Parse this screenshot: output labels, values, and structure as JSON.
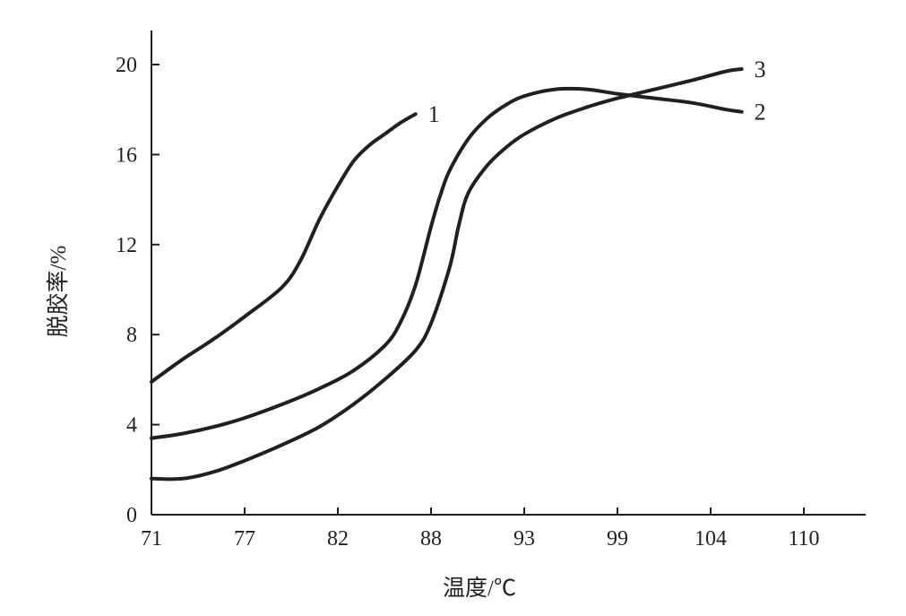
{
  "chart_data": {
    "type": "line",
    "xlabel": "温度/℃",
    "ylabel": "脱胶率/%",
    "x_ticks": [
      "71",
      "77",
      "82",
      "88",
      "93",
      "99",
      "104",
      "110"
    ],
    "y_ticks": [
      "0",
      "4",
      "8",
      "12",
      "16",
      "20"
    ],
    "grid": false,
    "series": [
      {
        "name": "1",
        "x": [
          71,
          73,
          75,
          77,
          79,
          80,
          81,
          82,
          83,
          84,
          85,
          86,
          87
        ],
        "y": [
          5.9,
          6.9,
          7.8,
          8.8,
          10.1,
          11.3,
          13.1,
          14.6,
          15.7,
          16.4,
          16.9,
          17.4,
          17.8
        ]
      },
      {
        "name": "2",
        "x": [
          71,
          73,
          75,
          77,
          79,
          81,
          83,
          85,
          86,
          87,
          88,
          88.5,
          89,
          90,
          91,
          92,
          93,
          95,
          97,
          99,
          101,
          103,
          105,
          106
        ],
        "y": [
          3.4,
          3.6,
          3.9,
          4.3,
          4.9,
          5.6,
          6.4,
          7.5,
          8.5,
          10.2,
          12.8,
          14.2,
          15.3,
          16.7,
          17.6,
          18.2,
          18.6,
          18.9,
          18.9,
          18.7,
          18.5,
          18.3,
          18.0,
          17.9
        ]
      },
      {
        "name": "3",
        "x": [
          71,
          73,
          75,
          77,
          79,
          81,
          83,
          85,
          87,
          88,
          89,
          89.5,
          90,
          91,
          92,
          93,
          95,
          97,
          99,
          101,
          103,
          105,
          106
        ],
        "y": [
          1.6,
          1.6,
          1.9,
          2.4,
          3.1,
          3.9,
          4.9,
          6.0,
          7.3,
          8.5,
          11.0,
          12.9,
          14.3,
          15.5,
          16.3,
          16.9,
          17.6,
          18.1,
          18.5,
          18.9,
          19.3,
          19.7,
          19.8
        ]
      }
    ]
  }
}
